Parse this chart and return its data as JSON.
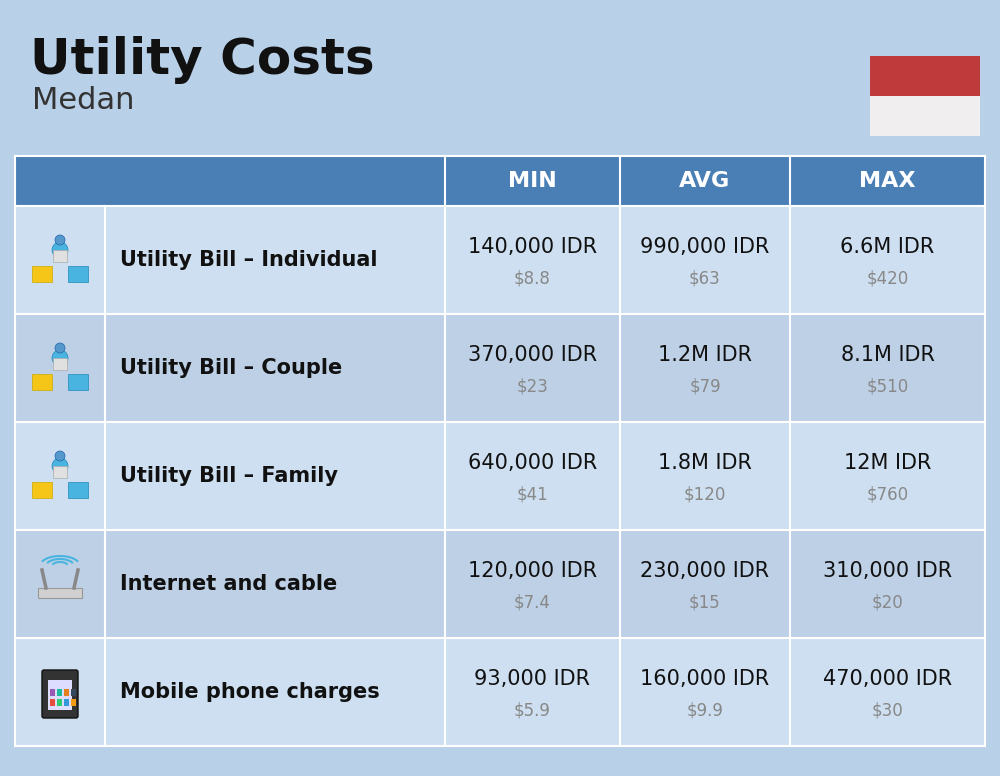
{
  "title": "Utility Costs",
  "subtitle": "Medan",
  "background_color": "#b8d0e8",
  "header_color": "#4a7fb5",
  "header_text_color": "#ffffff",
  "row_colors": [
    "#cddff0",
    "#bdd0e6"
  ],
  "columns": [
    "MIN",
    "AVG",
    "MAX"
  ],
  "rows": [
    {
      "label": "Utility Bill – Individual",
      "min_idr": "140,000 IDR",
      "min_usd": "$8.8",
      "avg_idr": "990,000 IDR",
      "avg_usd": "$63",
      "max_idr": "6.6M IDR",
      "max_usd": "$420"
    },
    {
      "label": "Utility Bill – Couple",
      "min_idr": "370,000 IDR",
      "min_usd": "$23",
      "avg_idr": "1.2M IDR",
      "avg_usd": "$79",
      "max_idr": "8.1M IDR",
      "max_usd": "$510"
    },
    {
      "label": "Utility Bill – Family",
      "min_idr": "640,000 IDR",
      "min_usd": "$41",
      "avg_idr": "1.8M IDR",
      "avg_usd": "$120",
      "max_idr": "12M IDR",
      "max_usd": "$760"
    },
    {
      "label": "Internet and cable",
      "min_idr": "120,000 IDR",
      "min_usd": "$7.4",
      "avg_idr": "230,000 IDR",
      "avg_usd": "$15",
      "max_idr": "310,000 IDR",
      "max_usd": "$20"
    },
    {
      "label": "Mobile phone charges",
      "min_idr": "93,000 IDR",
      "min_usd": "$5.9",
      "avg_idr": "160,000 IDR",
      "avg_usd": "$9.9",
      "max_idr": "470,000 IDR",
      "max_usd": "$30"
    }
  ],
  "flag_red": "#bf3b3b",
  "flag_white": "#f0eeee",
  "title_fontsize": 36,
  "subtitle_fontsize": 22,
  "header_fontsize": 16,
  "label_fontsize": 15,
  "value_fontsize": 15,
  "usd_fontsize": 12,
  "usd_color": "#888888",
  "divider_color": "#ffffff",
  "icon_colors_utility": [
    "#f5c518",
    "#4ab4e0"
  ],
  "icon_color_router": "#aaaaaa",
  "icon_color_phone": "#333333"
}
